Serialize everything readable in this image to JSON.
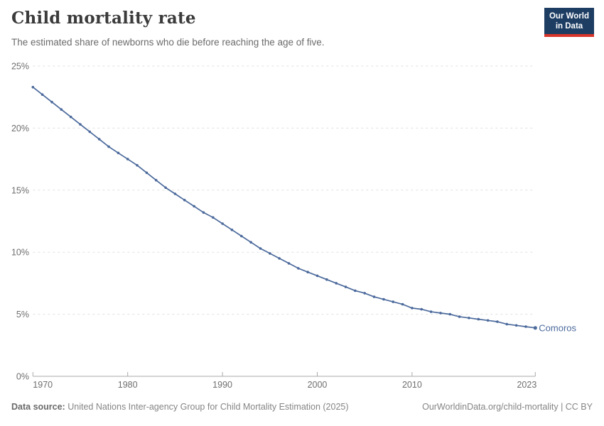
{
  "header": {
    "title": "Child mortality rate",
    "subtitle": "The estimated share of newborns who die before reaching the age of five."
  },
  "logo": {
    "line1": "Our World",
    "line2": "in Data",
    "bg_color": "#1d3d63",
    "accent_color": "#d8352b"
  },
  "footer": {
    "source_label": "Data source:",
    "source_text": "United Nations Inter-agency Group for Child Mortality Estimation (2025)",
    "right_text": "OurWorldinData.org/child-mortality | CC BY"
  },
  "chart_data": {
    "type": "line",
    "title": "Child mortality rate",
    "xlabel": "",
    "ylabel": "",
    "xlim": [
      1970,
      2023
    ],
    "ylim": [
      0,
      25
    ],
    "grid": "horizontal-dashed",
    "x_ticks": [
      1970,
      1980,
      1990,
      2000,
      2010,
      2023
    ],
    "y_ticks": [
      "0%",
      "5%",
      "10%",
      "15%",
      "20%",
      "25%"
    ],
    "colors": {
      "line": "#4C6A9C",
      "grid": "#e0e0e0",
      "axis": "#a8a8a8",
      "tick_label": "#6e6e6e"
    },
    "series": [
      {
        "name": "Comoros",
        "color": "#4C6A9C",
        "x": [
          1970,
          1971,
          1972,
          1973,
          1974,
          1975,
          1976,
          1977,
          1978,
          1979,
          1980,
          1981,
          1982,
          1983,
          1984,
          1985,
          1986,
          1987,
          1988,
          1989,
          1990,
          1991,
          1992,
          1993,
          1994,
          1995,
          1996,
          1997,
          1998,
          1999,
          2000,
          2001,
          2002,
          2003,
          2004,
          2005,
          2006,
          2007,
          2008,
          2009,
          2010,
          2011,
          2012,
          2013,
          2014,
          2015,
          2016,
          2017,
          2018,
          2019,
          2020,
          2021,
          2022,
          2023
        ],
        "values": [
          23.3,
          22.7,
          22.1,
          21.5,
          20.9,
          20.3,
          19.7,
          19.1,
          18.5,
          18.0,
          17.5,
          17.0,
          16.4,
          15.8,
          15.2,
          14.7,
          14.2,
          13.7,
          13.2,
          12.8,
          12.3,
          11.8,
          11.3,
          10.8,
          10.3,
          9.9,
          9.5,
          9.1,
          8.7,
          8.4,
          8.1,
          7.8,
          7.5,
          7.2,
          6.9,
          6.7,
          6.4,
          6.2,
          6.0,
          5.8,
          5.5,
          5.4,
          5.2,
          5.1,
          5.0,
          4.8,
          4.7,
          4.6,
          4.5,
          4.4,
          4.2,
          4.1,
          4.0,
          3.9
        ]
      }
    ]
  }
}
